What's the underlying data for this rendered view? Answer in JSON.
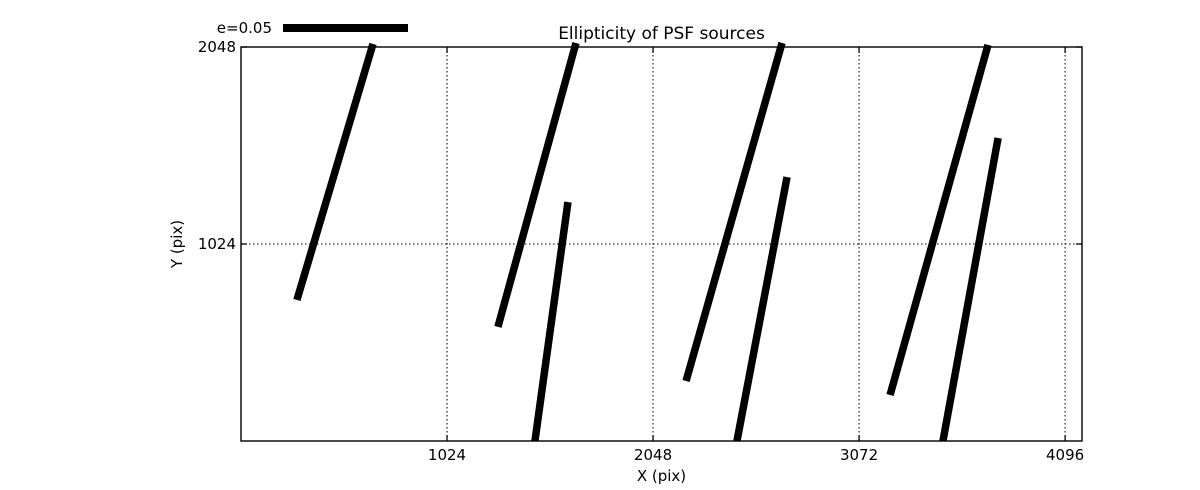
{
  "chart_data": {
    "type": "line-segments",
    "title": "Ellipticity of PSF sources",
    "xlabel": "X (pix)",
    "ylabel": "Y (pix)",
    "xlim": [
      0,
      4180
    ],
    "ylim": [
      0,
      2048
    ],
    "xticks": [
      1024,
      2048,
      3072,
      4096
    ],
    "yticks": [
      1024,
      2048
    ],
    "grid": {
      "on": true,
      "style": "dotted",
      "color": "#000000"
    },
    "line_color": "#000000",
    "background_color": "#ffffff",
    "legend": {
      "label": "e=0.05"
    },
    "segments": [
      {
        "x1": 278,
        "y1": 733,
        "x2": 656,
        "y2": 2064
      },
      {
        "x1": 1277,
        "y1": 593,
        "x2": 1665,
        "y2": 2069
      },
      {
        "x1": 1461,
        "y1": 0,
        "x2": 1625,
        "y2": 1242
      },
      {
        "x1": 2212,
        "y1": 312,
        "x2": 2689,
        "y2": 2069
      },
      {
        "x1": 2465,
        "y1": 0,
        "x2": 2714,
        "y2": 1372
      },
      {
        "x1": 3226,
        "y1": 239,
        "x2": 3713,
        "y2": 2059
      },
      {
        "x1": 3489,
        "y1": 0,
        "x2": 3763,
        "y2": 1575
      }
    ]
  }
}
